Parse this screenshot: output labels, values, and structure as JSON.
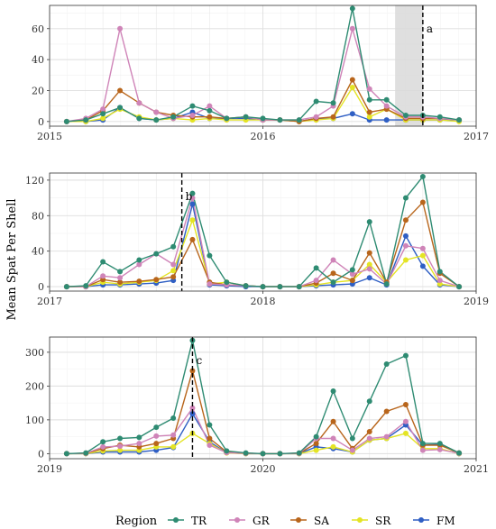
{
  "chart_data": {
    "type": "line",
    "ylabel": "Mean Spat Per Shell",
    "legend": {
      "title": "Region",
      "placement": "bottom",
      "entries": [
        "TR",
        "GR",
        "SA",
        "SR",
        "FM"
      ]
    },
    "colors": {
      "TR": "#2e8b72",
      "GR": "#cf84b8",
      "SA": "#b8651b",
      "SR": "#e4e424",
      "FM": "#2f5fc4"
    },
    "grid": true,
    "panels": [
      {
        "xlim": [
          2015.0,
          2017.0
        ],
        "xticks": [
          "2015",
          "2016",
          "2017"
        ],
        "ylim": [
          -3,
          75
        ],
        "yticks": [
          "0",
          "20",
          "40",
          "60"
        ],
        "yticks_values": [
          0,
          20,
          40,
          60
        ],
        "x": [
          2015.08,
          2015.17,
          2015.25,
          2015.33,
          2015.42,
          2015.5,
          2015.58,
          2015.67,
          2015.75,
          2015.83,
          2015.92,
          2016.0,
          2016.08,
          2016.17,
          2016.25,
          2016.33,
          2016.42,
          2016.5,
          2016.58,
          2016.67,
          2016.75,
          2016.83,
          2016.92
        ],
        "series": [
          {
            "name": "TR",
            "values": [
              0,
              1,
              5,
              9,
              2,
              1,
              3,
              10,
              7,
              2,
              3,
              2,
              1,
              1,
              13,
              12,
              73,
              14,
              14,
              4,
              4,
              3,
              1
            ]
          },
          {
            "name": "GR",
            "values": [
              0,
              2,
              8,
              60,
              12,
              6,
              2,
              4,
              10,
              2,
              3,
              1,
              1,
              1,
              3,
              10,
              60,
              21,
              10,
              3,
              3,
              2,
              1
            ]
          },
          {
            "name": "SA",
            "values": [
              0,
              1,
              7,
              20,
              12,
              6,
              4,
              3,
              3,
              2,
              3,
              1,
              1,
              0,
              2,
              3,
              27,
              6,
              8,
              2,
              2,
              2,
              1
            ]
          },
          {
            "name": "SR",
            "values": [
              0,
              0,
              2,
              8,
              3,
              1,
              2,
              1,
              2,
              1,
              1,
              1,
              1,
              0,
              1,
              2,
              22,
              3,
              8,
              1,
              1,
              1,
              0
            ]
          },
          {
            "name": "FM",
            "values": [
              0,
              0,
              1,
              9,
              2,
              1,
              2,
              6,
              2,
              2,
              2,
              1,
              1,
              0,
              2,
              2,
              5,
              1,
              1,
              1,
              1,
              1,
              1
            ]
          }
        ],
        "shade": [
          2016.62,
          2016.75
        ],
        "vline": 2016.75,
        "annotation": "a"
      },
      {
        "xlim": [
          2017.0,
          2019.0
        ],
        "xticks": [
          "2017",
          "2018",
          "2019"
        ],
        "ylim": [
          -5,
          128
        ],
        "yticks": [
          "0",
          "40",
          "80",
          "120"
        ],
        "yticks_values": [
          0,
          40,
          80,
          120
        ],
        "x": [
          2017.08,
          2017.17,
          2017.25,
          2017.33,
          2017.42,
          2017.5,
          2017.58,
          2017.67,
          2017.75,
          2017.83,
          2017.92,
          2018.0,
          2018.08,
          2018.17,
          2018.25,
          2018.33,
          2018.42,
          2018.5,
          2018.58,
          2018.67,
          2018.75,
          2018.83,
          2018.92
        ],
        "series": [
          {
            "name": "TR",
            "values": [
              0,
              1,
              28,
              17,
              30,
              37,
              45,
              105,
              35,
              5,
              1,
              0,
              0,
              0,
              21,
              5,
              19,
              73,
              3,
              100,
              124,
              17,
              0
            ]
          },
          {
            "name": "GR",
            "values": [
              0,
              0,
              12,
              10,
              25,
              37,
              25,
              100,
              3,
              2,
              1,
              0,
              0,
              0,
              7,
              30,
              14,
              20,
              3,
              46,
              43,
              7,
              0
            ]
          },
          {
            "name": "SA",
            "values": [
              0,
              0,
              8,
              5,
              6,
              8,
              11,
              53,
              5,
              2,
              1,
              0,
              0,
              0,
              4,
              15,
              7,
              38,
              5,
              75,
              95,
              15,
              0
            ]
          },
          {
            "name": "SR",
            "values": [
              0,
              0,
              5,
              3,
              5,
              7,
              18,
              75,
              3,
              5,
              1,
              0,
              0,
              0,
              2,
              5,
              7,
              25,
              5,
              30,
              35,
              3,
              0
            ]
          },
          {
            "name": "FM",
            "values": [
              0,
              0,
              2,
              2,
              3,
              4,
              7,
              93,
              2,
              1,
              0,
              0,
              0,
              0,
              1,
              2,
              3,
              10,
              2,
              57,
              23,
              2,
              0
            ]
          }
        ],
        "vline": 2017.62,
        "annotation": "b"
      },
      {
        "xlim": [
          2019.0,
          2021.0
        ],
        "xticks": [
          "2019",
          "2020",
          "2021"
        ],
        "ylim": [
          -15,
          345
        ],
        "yticks": [
          "0",
          "100",
          "200",
          "300"
        ],
        "yticks_values": [
          0,
          100,
          200,
          300
        ],
        "x": [
          2019.08,
          2019.17,
          2019.25,
          2019.33,
          2019.42,
          2019.5,
          2019.58,
          2019.67,
          2019.75,
          2019.83,
          2019.92,
          2020.0,
          2020.08,
          2020.17,
          2020.25,
          2020.33,
          2020.42,
          2020.5,
          2020.58,
          2020.67,
          2020.75,
          2020.83,
          2020.92
        ],
        "series": [
          {
            "name": "TR",
            "values": [
              0,
              2,
              35,
              45,
              48,
              78,
              105,
              335,
              85,
              8,
              2,
              0,
              0,
              2,
              50,
              185,
              45,
              155,
              265,
              290,
              30,
              30,
              2
            ]
          },
          {
            "name": "GR",
            "values": [
              0,
              1,
              20,
              22,
              30,
              52,
              55,
              135,
              25,
              3,
              1,
              0,
              0,
              1,
              45,
              45,
              10,
              45,
              50,
              95,
              10,
              12,
              1
            ]
          },
          {
            "name": "SA",
            "values": [
              0,
              1,
              15,
              25,
              20,
              30,
              45,
              245,
              45,
              5,
              1,
              0,
              0,
              1,
              30,
              95,
              15,
              65,
              125,
              145,
              25,
              25,
              2
            ]
          },
          {
            "name": "SR",
            "values": [
              0,
              0,
              8,
              10,
              10,
              20,
              20,
              60,
              30,
              2,
              0,
              0,
              0,
              0,
              10,
              20,
              5,
              40,
              45,
              60,
              15,
              15,
              0
            ]
          },
          {
            "name": "FM",
            "values": [
              0,
              0,
              5,
              5,
              5,
              10,
              18,
              118,
              35,
              3,
              0,
              0,
              0,
              0,
              20,
              15,
              5,
              40,
              45,
              85,
              25,
              28,
              0
            ]
          }
        ],
        "vline": 2019.67,
        "annotation": "c"
      }
    ]
  }
}
